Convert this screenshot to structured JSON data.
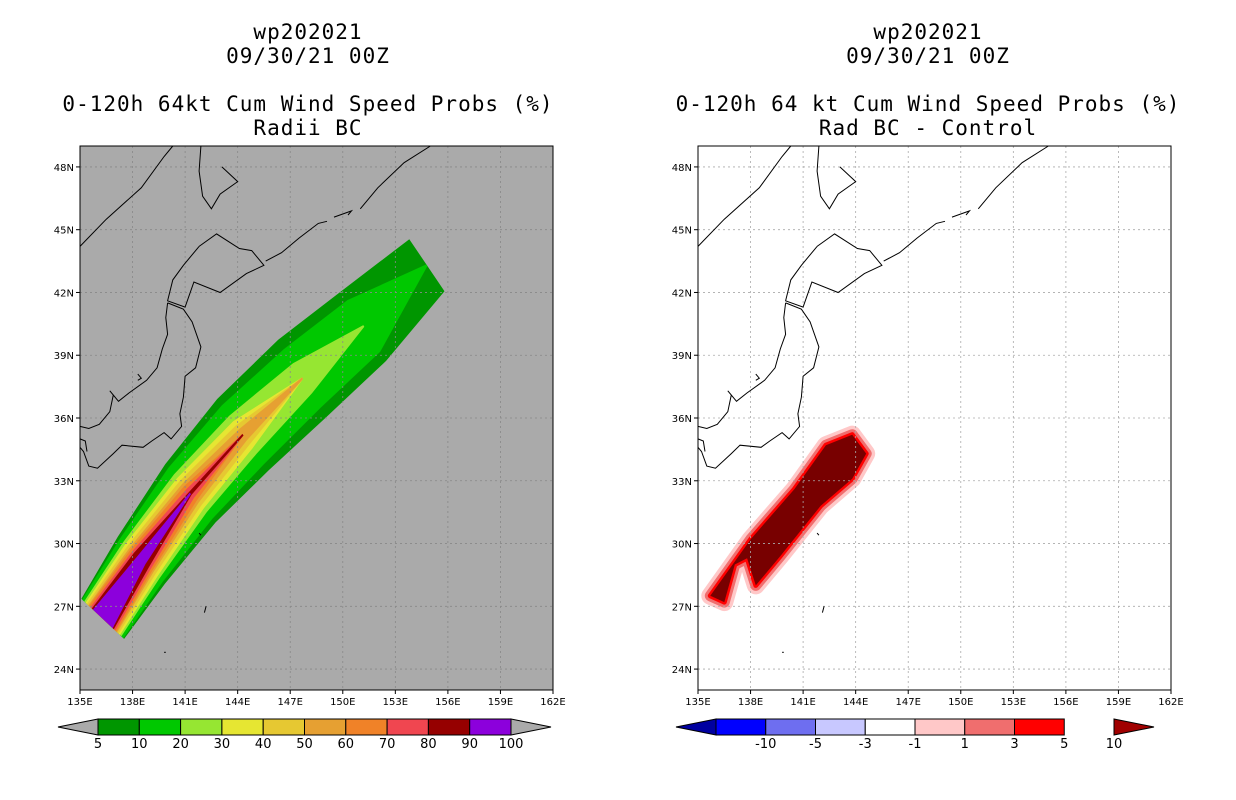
{
  "panels": [
    {
      "title_lines": [
        "wp202021",
        "09/30/21 00Z"
      ],
      "subtitle_lines": [
        "0-120h 64kt Cum Wind Speed Probs (%)",
        "Radii BC"
      ],
      "chart_data": {
        "type": "heatmap",
        "title": "0-120h 64kt Cum Wind Speed Probs (%)",
        "subtitle": "Radii BC",
        "storm_id": "wp202021",
        "valid_time": "09/30/21 00Z",
        "xlim": [
          135,
          162
        ],
        "ylim": [
          23,
          49
        ],
        "x_ticks": [
          135,
          138,
          141,
          144,
          147,
          150,
          153,
          156,
          159,
          162
        ],
        "x_tick_labels": [
          "135E",
          "138E",
          "141E",
          "144E",
          "147E",
          "150E",
          "153E",
          "156E",
          "159E",
          "162E"
        ],
        "y_ticks": [
          24,
          27,
          30,
          33,
          36,
          39,
          42,
          45,
          48
        ],
        "y_tick_labels": [
          "24N",
          "27N",
          "30N",
          "33N",
          "36N",
          "39N",
          "42N",
          "45N",
          "48N"
        ],
        "grid": true,
        "background": "#aaaaaa",
        "colorbar_labels": [
          "5",
          "10",
          "20",
          "30",
          "40",
          "50",
          "60",
          "70",
          "80",
          "90",
          "100"
        ],
        "colorbar_colors": [
          "#009600",
          "#00c800",
          "#96e632",
          "#e6e632",
          "#e6c832",
          "#e6a032",
          "#f08228",
          "#f04650",
          "#960000",
          "#8c00dc"
        ],
        "contour_levels": [
          5,
          10,
          20,
          30,
          40,
          50,
          60,
          70,
          80,
          90
        ],
        "swath_centerline": [
          [
            136.3,
            26.4
          ],
          [
            138.5,
            29.2
          ],
          [
            141.3,
            32.4
          ],
          [
            144.3,
            35.2
          ],
          [
            147.7,
            37.9
          ],
          [
            151.2,
            40.4
          ],
          [
            154.8,
            43.3
          ]
        ],
        "swath_half_widths": [
          [
            1.55,
            1.75,
            2.0,
            2.25,
            2.3,
            2.1,
            1.6
          ],
          [
            1.5,
            1.6,
            1.75,
            1.85,
            1.75,
            1.55,
            0
          ],
          [
            1.35,
            1.35,
            1.3,
            1.2,
            0.9,
            0,
            0
          ],
          [
            1.25,
            1.2,
            1.05,
            0.85,
            0,
            0,
            0
          ],
          [
            1.15,
            1.05,
            0.85,
            0.6,
            0,
            0,
            0
          ],
          [
            1.05,
            0.9,
            0.65,
            0.35,
            0,
            0,
            0
          ],
          [
            1.0,
            0.8,
            0.5,
            0,
            0,
            0,
            0
          ],
          [
            0.9,
            0.68,
            0.3,
            0,
            0,
            0,
            0
          ],
          [
            0.8,
            0.55,
            0.1,
            0,
            0,
            0,
            0
          ],
          [
            0.72,
            0.3,
            0,
            0,
            0,
            0,
            0
          ]
        ]
      }
    },
    {
      "title_lines": [
        "wp202021",
        "09/30/21 00Z"
      ],
      "subtitle_lines": [
        "0-120h 64 kt Cum Wind Speed Probs (%)",
        "Rad BC - Control"
      ],
      "chart_data": {
        "type": "heatmap",
        "title": "0-120h 64 kt Cum Wind Speed Probs (%)",
        "subtitle": "Rad BC - Control",
        "storm_id": "wp202021",
        "valid_time": "09/30/21 00Z",
        "xlim": [
          135,
          162
        ],
        "ylim": [
          23,
          49
        ],
        "x_ticks": [
          135,
          138,
          141,
          144,
          147,
          150,
          153,
          156,
          159,
          162
        ],
        "x_tick_labels": [
          "135E",
          "138E",
          "141E",
          "144E",
          "147E",
          "150E",
          "153E",
          "156E",
          "159E",
          "162E"
        ],
        "y_ticks": [
          24,
          27,
          30,
          33,
          36,
          39,
          42,
          45,
          48
        ],
        "y_tick_labels": [
          "24N",
          "27N",
          "30N",
          "33N",
          "36N",
          "39N",
          "42N",
          "45N",
          "48N"
        ],
        "grid": true,
        "background": "#ffffff",
        "colorbar_labels": [
          "-10",
          "-5",
          "-3",
          "-1",
          "1",
          "3",
          "5",
          "10"
        ],
        "colorbar_colors": [
          "#0000a0",
          "#0000ff",
          "#6e6ef0",
          "#c8c8ff",
          "#ffffff",
          "#ffc8c8",
          "#f06e6e",
          "#ff0000",
          "#a00000"
        ],
        "difference_region": {
          "levels": [
            1,
            3,
            5,
            10
          ],
          "colors": [
            "#ffc8c8",
            "#f06e6e",
            "#ff0000",
            "#780000"
          ],
          "outline": [
            [
              135.7,
              27.5
            ],
            [
              138.0,
              30.2
            ],
            [
              140.5,
              32.6
            ],
            [
              142.3,
              34.7
            ],
            [
              143.8,
              35.2
            ],
            [
              144.6,
              34.3
            ],
            [
              143.8,
              33.1
            ],
            [
              142.0,
              31.8
            ],
            [
              139.7,
              29.4
            ],
            [
              138.3,
              28.0
            ],
            [
              137.8,
              29.3
            ],
            [
              137.1,
              29.0
            ],
            [
              136.5,
              27.2
            ]
          ]
        }
      }
    }
  ]
}
